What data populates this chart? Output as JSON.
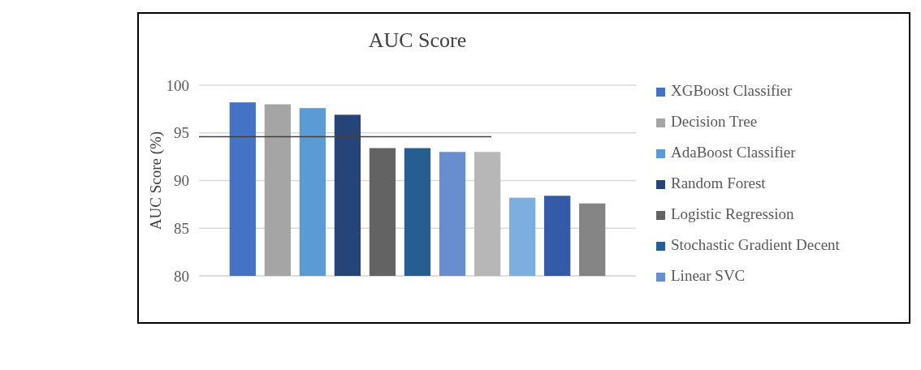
{
  "chart_data": {
    "type": "bar",
    "title": "AUC Score",
    "ylabel": "AUC Score (%)",
    "categories": [
      null
    ],
    "ylim": [
      80,
      100
    ],
    "yticks": [
      80,
      85,
      90,
      95,
      100
    ],
    "grid": "y",
    "legend": "right",
    "series": [
      {
        "name": "XGBoost Classifier",
        "color": "#4472c4",
        "values": [
          98.2
        ]
      },
      {
        "name": "Decision Tree",
        "color": "#a5a5a5",
        "values": [
          98.0
        ]
      },
      {
        "name": "AdaBoost Classifier",
        "color": "#5b9bd5",
        "values": [
          97.6
        ]
      },
      {
        "name": "Random Forest",
        "color": "#264478",
        "values": [
          96.9
        ]
      },
      {
        "name": "Logistic Regression",
        "color": "#636363",
        "values": [
          93.4
        ]
      },
      {
        "name": "Stochastic Gradient Decent",
        "color": "#255e91",
        "values": [
          93.4
        ]
      },
      {
        "name": "Linear SVC",
        "color": "#698ed0",
        "values": [
          93.0
        ]
      },
      {
        "color": "#b7b7b7",
        "values": [
          93.0
        ]
      },
      {
        "color": "#7cafdd",
        "values": [
          88.2
        ]
      },
      {
        "color": "#335aa6",
        "values": [
          88.4
        ]
      },
      {
        "color": "#848484",
        "values": [
          87.6
        ]
      }
    ],
    "ref_lines": [
      {
        "axis": "y",
        "value": 94.6,
        "color": "#404040"
      }
    ]
  }
}
